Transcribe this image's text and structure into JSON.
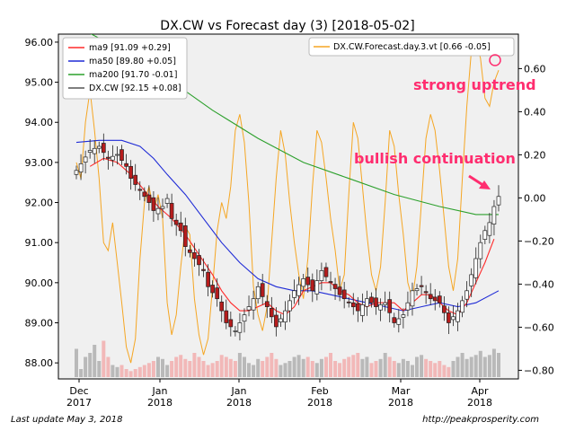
{
  "chart_data": {
    "type": "candlestick",
    "title": "DX.CW vs Forecast day (3)  [2018-05-02]",
    "x_ticks": [
      {
        "line1": "Dec",
        "line2": "2017",
        "date": "2017-12-01"
      },
      {
        "line1": "Jan",
        "line2": "2018",
        "date": "2018-01-01"
      },
      {
        "line1": "Jan",
        "line2": "2018",
        "date": "2018-01-15"
      },
      {
        "line1": "Feb",
        "line2": "2018",
        "date": "2018-02-01"
      },
      {
        "line1": "Mar",
        "line2": "2018",
        "date": "2018-03-01"
      },
      {
        "line1": "Apr",
        "line2": "2018",
        "date": "2018-04-01"
      }
    ],
    "y_left": {
      "ticks": [
        "88.00",
        "89.00",
        "90.00",
        "91.00",
        "92.00",
        "93.00",
        "94.00",
        "95.00",
        "96.00"
      ],
      "range": [
        87.6,
        96.2
      ]
    },
    "y_right": {
      "ticks": [
        "−0.80",
        "−0.60",
        "−0.40",
        "−0.20",
        "0.00",
        "0.20",
        "0.40",
        "0.60"
      ],
      "range": [
        -0.84,
        0.76
      ]
    },
    "grid": false,
    "legend_left": [
      {
        "label": "ma9 [91.09 +0.29]",
        "color": "#ff2a2a"
      },
      {
        "label": "ma50 [89.80 +0.05]",
        "color": "#1f2bd6"
      },
      {
        "label": "ma200 [91.70 -0.01]",
        "color": "#2ca02c"
      },
      {
        "label": "DX.CW [92.15 +0.08]",
        "color": "#555555"
      }
    ],
    "legend_right": {
      "label": "DX.CW.Forecast.day.3.vt [0.66 -0.05]",
      "color": "#f5a623"
    },
    "annotations": [
      "strong uptrend",
      "bullish continuation"
    ],
    "annotation_color": "#ff2d6f",
    "close_points": [
      [
        0,
        92.8
      ],
      [
        3,
        93.3
      ],
      [
        5,
        93.4
      ],
      [
        7,
        93.1
      ],
      [
        9,
        93.2
      ],
      [
        11,
        92.9
      ],
      [
        12,
        92.6
      ],
      [
        14,
        92.3
      ],
      [
        16,
        92.0
      ],
      [
        17,
        91.8
      ],
      [
        19,
        91.9
      ],
      [
        20,
        92.1
      ],
      [
        21,
        91.6
      ],
      [
        23,
        91.3
      ],
      [
        24,
        90.9
      ],
      [
        26,
        90.6
      ],
      [
        28,
        90.3
      ],
      [
        29,
        89.9
      ],
      [
        31,
        89.6
      ],
      [
        33,
        89.0
      ],
      [
        35,
        88.8
      ],
      [
        37,
        89.2
      ],
      [
        39,
        89.6
      ],
      [
        40,
        89.9
      ],
      [
        42,
        89.4
      ],
      [
        44,
        88.9
      ],
      [
        46,
        89.3
      ],
      [
        48,
        89.8
      ],
      [
        50,
        90.1
      ],
      [
        52,
        89.8
      ],
      [
        54,
        90.3
      ],
      [
        56,
        90.0
      ],
      [
        58,
        89.7
      ],
      [
        60,
        89.5
      ],
      [
        62,
        89.3
      ],
      [
        64,
        89.6
      ],
      [
        66,
        89.4
      ],
      [
        68,
        89.5
      ],
      [
        70,
        89.0
      ],
      [
        72,
        89.2
      ],
      [
        74,
        89.8
      ],
      [
        76,
        89.9
      ],
      [
        78,
        89.6
      ],
      [
        80,
        89.5
      ],
      [
        82,
        89.0
      ],
      [
        84,
        89.3
      ],
      [
        86,
        89.8
      ],
      [
        87,
        90.2
      ],
      [
        88,
        90.6
      ],
      [
        89,
        91.0
      ],
      [
        90,
        91.3
      ],
      [
        91,
        91.5
      ],
      [
        92,
        91.9
      ],
      [
        93,
        92.15
      ]
    ],
    "ma9_points": [
      [
        3,
        92.9
      ],
      [
        6,
        93.1
      ],
      [
        9,
        93.0
      ],
      [
        12,
        92.7
      ],
      [
        15,
        92.3
      ],
      [
        18,
        91.9
      ],
      [
        21,
        91.6
      ],
      [
        24,
        91.2
      ],
      [
        27,
        90.7
      ],
      [
        30,
        90.2
      ],
      [
        32,
        89.8
      ],
      [
        34,
        89.5
      ],
      [
        36,
        89.3
      ],
      [
        38,
        89.3
      ],
      [
        40,
        89.4
      ],
      [
        42,
        89.5
      ],
      [
        44,
        89.3
      ],
      [
        46,
        89.2
      ],
      [
        48,
        89.4
      ],
      [
        50,
        89.8
      ],
      [
        52,
        89.9
      ],
      [
        54,
        90.0
      ],
      [
        56,
        90.0
      ],
      [
        58,
        89.8
      ],
      [
        60,
        89.7
      ],
      [
        62,
        89.5
      ],
      [
        64,
        89.4
      ],
      [
        66,
        89.5
      ],
      [
        68,
        89.5
      ],
      [
        70,
        89.5
      ],
      [
        72,
        89.3
      ],
      [
        74,
        89.5
      ],
      [
        76,
        89.7
      ],
      [
        78,
        89.7
      ],
      [
        80,
        89.5
      ],
      [
        82,
        89.3
      ],
      [
        84,
        89.2
      ],
      [
        86,
        89.5
      ],
      [
        88,
        90.0
      ],
      [
        90,
        90.5
      ],
      [
        92,
        91.09
      ]
    ],
    "ma50_points": [
      [
        0,
        93.5
      ],
      [
        5,
        93.55
      ],
      [
        10,
        93.55
      ],
      [
        14,
        93.4
      ],
      [
        17,
        93.1
      ],
      [
        20,
        92.7
      ],
      [
        24,
        92.2
      ],
      [
        28,
        91.6
      ],
      [
        32,
        91.0
      ],
      [
        36,
        90.5
      ],
      [
        40,
        90.1
      ],
      [
        44,
        89.9
      ],
      [
        48,
        89.8
      ],
      [
        52,
        89.8
      ],
      [
        56,
        89.7
      ],
      [
        60,
        89.6
      ],
      [
        64,
        89.5
      ],
      [
        68,
        89.4
      ],
      [
        72,
        89.3
      ],
      [
        76,
        89.4
      ],
      [
        80,
        89.5
      ],
      [
        84,
        89.4
      ],
      [
        88,
        89.5
      ],
      [
        93,
        89.8
      ]
    ],
    "ma200_points": [
      [
        0,
        96.4
      ],
      [
        10,
        95.8
      ],
      [
        20,
        95.1
      ],
      [
        30,
        94.3
      ],
      [
        40,
        93.6
      ],
      [
        50,
        93.0
      ],
      [
        60,
        92.6
      ],
      [
        70,
        92.2
      ],
      [
        80,
        91.9
      ],
      [
        88,
        91.7
      ],
      [
        93,
        91.7
      ]
    ],
    "forecast_points": [
      [
        0,
        93.0
      ],
      [
        1,
        92.6
      ],
      [
        2,
        94.0
      ],
      [
        3,
        94.8
      ],
      [
        4,
        93.8
      ],
      [
        5,
        92.6
      ],
      [
        6,
        91.0
      ],
      [
        7,
        90.8
      ],
      [
        8,
        91.5
      ],
      [
        9,
        90.5
      ],
      [
        10,
        89.5
      ],
      [
        11,
        88.4
      ],
      [
        12,
        88.0
      ],
      [
        13,
        88.6
      ],
      [
        14,
        90.6
      ],
      [
        15,
        92.0
      ],
      [
        16,
        92.4
      ],
      [
        17,
        91.8
      ],
      [
        18,
        92.2
      ],
      [
        19,
        91.6
      ],
      [
        20,
        89.5
      ],
      [
        21,
        88.7
      ],
      [
        22,
        89.2
      ],
      [
        23,
        90.4
      ],
      [
        24,
        91.4
      ],
      [
        25,
        91.2
      ],
      [
        26,
        89.6
      ],
      [
        27,
        88.7
      ],
      [
        28,
        88.2
      ],
      [
        29,
        88.6
      ],
      [
        30,
        89.9
      ],
      [
        31,
        91.3
      ],
      [
        32,
        92.0
      ],
      [
        33,
        91.6
      ],
      [
        34,
        92.4
      ],
      [
        35,
        93.8
      ],
      [
        36,
        94.2
      ],
      [
        37,
        93.5
      ],
      [
        38,
        92.0
      ],
      [
        39,
        89.9
      ],
      [
        40,
        89.2
      ],
      [
        41,
        88.8
      ],
      [
        42,
        89.4
      ],
      [
        43,
        91.0
      ],
      [
        44,
        92.6
      ],
      [
        45,
        93.8
      ],
      [
        46,
        93.2
      ],
      [
        47,
        92.0
      ],
      [
        48,
        91.0
      ],
      [
        49,
        90.2
      ],
      [
        50,
        89.6
      ],
      [
        51,
        90.6
      ],
      [
        52,
        92.4
      ],
      [
        53,
        93.8
      ],
      [
        54,
        93.5
      ],
      [
        55,
        92.6
      ],
      [
        56,
        91.6
      ],
      [
        57,
        90.8
      ],
      [
        58,
        89.8
      ],
      [
        59,
        90.2
      ],
      [
        60,
        92.2
      ],
      [
        61,
        94.0
      ],
      [
        62,
        93.6
      ],
      [
        63,
        92.4
      ],
      [
        64,
        91.2
      ],
      [
        65,
        90.2
      ],
      [
        66,
        89.8
      ],
      [
        67,
        90.4
      ],
      [
        68,
        92.0
      ],
      [
        69,
        93.8
      ],
      [
        70,
        93.4
      ],
      [
        71,
        92.2
      ],
      [
        72,
        91.2
      ],
      [
        73,
        90.0
      ],
      [
        74,
        89.6
      ],
      [
        75,
        90.4
      ],
      [
        76,
        92.0
      ],
      [
        77,
        93.6
      ],
      [
        78,
        94.2
      ],
      [
        79,
        93.8
      ],
      [
        80,
        92.8
      ],
      [
        81,
        91.6
      ],
      [
        82,
        90.4
      ],
      [
        83,
        89.8
      ],
      [
        84,
        90.6
      ],
      [
        85,
        92.6
      ],
      [
        86,
        94.4
      ],
      [
        87,
        95.8
      ],
      [
        88,
        96.0
      ],
      [
        89,
        95.6
      ],
      [
        90,
        94.6
      ],
      [
        91,
        94.4
      ],
      [
        92,
        95.0
      ],
      [
        93,
        95.3
      ]
    ],
    "volume_levels": [
      0.7,
      0.2,
      0.5,
      0.6,
      0.8,
      0.4,
      0.9,
      0.5,
      0.3,
      0.25,
      0.3,
      0.2,
      0.15,
      0.2,
      0.25,
      0.3,
      0.35,
      0.4,
      0.5,
      0.45,
      0.3,
      0.4,
      0.5,
      0.55,
      0.45,
      0.4,
      0.6,
      0.5,
      0.4,
      0.3,
      0.35,
      0.4,
      0.55,
      0.5,
      0.45,
      0.4,
      0.6,
      0.5,
      0.35,
      0.3,
      0.45,
      0.4,
      0.5,
      0.6,
      0.45,
      0.3,
      0.35,
      0.4,
      0.5,
      0.55,
      0.45,
      0.5,
      0.4,
      0.35,
      0.45,
      0.5,
      0.6,
      0.4,
      0.35,
      0.45,
      0.5,
      0.55,
      0.6,
      0.45,
      0.5,
      0.35,
      0.4,
      0.45,
      0.6,
      0.5,
      0.4,
      0.35,
      0.45,
      0.4,
      0.3,
      0.5,
      0.55,
      0.45,
      0.4,
      0.35,
      0.4,
      0.3,
      0.25,
      0.4,
      0.5,
      0.6,
      0.45,
      0.5,
      0.55,
      0.65,
      0.5,
      0.55,
      0.7,
      0.6
    ]
  },
  "footer": {
    "left": "Last update May  3, 2018",
    "right": "http://peakprosperity.com"
  }
}
